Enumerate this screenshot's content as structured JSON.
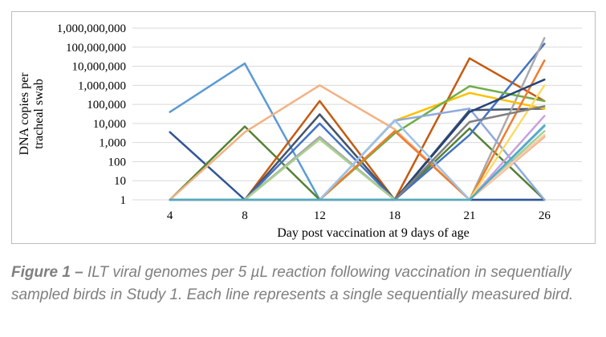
{
  "chart_data": {
    "type": "line",
    "title": "",
    "xlabel": "Day post vaccination at 9 days of age",
    "ylabel": "DNA copies per tracheal swab",
    "y_scale": "log",
    "ylim": [
      1,
      1000000000
    ],
    "y_ticks": [
      "1",
      "10",
      "100",
      "1,000",
      "10,000",
      "100,000",
      "1,000,000",
      "10,000,000",
      "100,000,000",
      "1,000,000,000"
    ],
    "categories": [
      "4",
      "8",
      "12",
      "18",
      "21",
      "26"
    ],
    "grid": "horizontal",
    "legend": "none",
    "series": [
      {
        "color": "#5b9bd5",
        "values": [
          40000,
          14000000,
          1,
          1,
          1,
          1
        ]
      },
      {
        "color": "#2f5597",
        "values": [
          3500,
          1,
          1,
          1,
          1,
          1
        ]
      },
      {
        "color": "#548235",
        "values": [
          1,
          7000,
          1,
          1,
          5500,
          1
        ]
      },
      {
        "color": "#f4b183",
        "values": [
          1,
          3500,
          1000000,
          5000,
          1,
          2000
        ]
      },
      {
        "color": "#c55a11",
        "values": [
          1,
          1,
          150000,
          1,
          26000000,
          150000
        ]
      },
      {
        "color": "#44546a",
        "values": [
          1,
          1,
          30000,
          1,
          50000,
          60000
        ]
      },
      {
        "color": "#4472c4",
        "values": [
          1,
          1,
          10000,
          1,
          2500,
          150000000
        ]
      },
      {
        "color": "#a9a9a9",
        "values": [
          1,
          1,
          2000,
          1,
          1,
          300000000
        ]
      },
      {
        "color": "#a9d18e",
        "values": [
          1,
          1,
          1500,
          1,
          1,
          4000
        ]
      },
      {
        "color": "#ffc000",
        "values": [
          1,
          1,
          1,
          14000,
          400000,
          60000
        ]
      },
      {
        "color": "#70ad47",
        "values": [
          1,
          1,
          1,
          3000,
          900000,
          150000
        ]
      },
      {
        "color": "#8faadc",
        "values": [
          1,
          1,
          1,
          14000,
          60000,
          1
        ]
      },
      {
        "color": "#ed7d31",
        "values": [
          1,
          1,
          1,
          4000,
          1,
          20000000
        ]
      },
      {
        "color": "#264478",
        "values": [
          1,
          1,
          1,
          1,
          40000,
          2000000
        ]
      },
      {
        "color": "#9dc3e6",
        "values": [
          1,
          1,
          1,
          15000,
          1,
          7000
        ]
      },
      {
        "color": "#c9a0dc",
        "values": [
          1,
          1,
          1,
          1,
          1,
          25000
        ]
      },
      {
        "color": "#ffd966",
        "values": [
          1,
          1,
          1,
          1,
          1,
          1000000
        ]
      },
      {
        "color": "#f8cbad",
        "values": [
          1,
          1,
          1,
          1,
          1,
          2500
        ]
      },
      {
        "color": "#7f7f7f",
        "values": [
          1,
          1,
          1,
          1,
          12000,
          80000
        ]
      },
      {
        "color": "#4bacc6",
        "values": [
          1,
          1,
          1,
          1,
          1,
          8000
        ]
      }
    ]
  },
  "caption": {
    "label": "Figure 1 – ",
    "text": "ILT viral genomes per 5 µL reaction following vaccination in sequentially sampled birds in Study 1. Each line represents a single sequentially measured bird."
  }
}
